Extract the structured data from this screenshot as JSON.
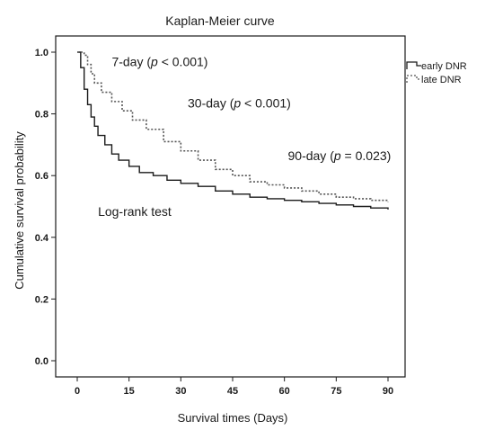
{
  "chart_data": {
    "type": "line",
    "title": "Kaplan-Meier curve",
    "xlabel": "Survival times (Days)",
    "ylabel": "Cumulative survival probability",
    "xlim": [
      0,
      90
    ],
    "ylim": [
      0,
      1.0
    ],
    "xticks": [
      0,
      15,
      30,
      45,
      60,
      75,
      90
    ],
    "yticks": [
      0.0,
      0.2,
      0.4,
      0.6,
      0.8,
      1.0
    ],
    "yticklabels": [
      "0.0",
      "0.2",
      "0.4",
      "0.6",
      "0.8",
      "1.0"
    ],
    "grid": false,
    "legend_position": "right",
    "series": [
      {
        "name": "early DNR",
        "style": "solid",
        "color": "#1a1a1a",
        "x": [
          0,
          1,
          2,
          3,
          4,
          5,
          6,
          8,
          10,
          12,
          15,
          18,
          22,
          26,
          30,
          35,
          40,
          45,
          50,
          55,
          60,
          65,
          70,
          75,
          80,
          85,
          90
        ],
        "y": [
          1.0,
          0.95,
          0.88,
          0.83,
          0.79,
          0.76,
          0.73,
          0.7,
          0.67,
          0.65,
          0.63,
          0.61,
          0.6,
          0.585,
          0.575,
          0.565,
          0.55,
          0.54,
          0.53,
          0.525,
          0.52,
          0.515,
          0.51,
          0.505,
          0.5,
          0.495,
          0.49
        ]
      },
      {
        "name": "late DNR",
        "style": "dotted",
        "color": "#555555",
        "x": [
          0,
          2,
          3,
          4,
          5,
          7,
          10,
          13,
          16,
          20,
          25,
          30,
          35,
          40,
          45,
          50,
          55,
          60,
          65,
          70,
          75,
          80,
          85,
          90
        ],
        "y": [
          1.0,
          0.99,
          0.96,
          0.93,
          0.9,
          0.87,
          0.84,
          0.81,
          0.78,
          0.75,
          0.71,
          0.68,
          0.65,
          0.62,
          0.6,
          0.58,
          0.57,
          0.56,
          0.55,
          0.54,
          0.53,
          0.525,
          0.52,
          0.515
        ]
      }
    ],
    "annotations": [
      {
        "x": 10,
        "y": 0.955,
        "parts": [
          "7-day (",
          "p",
          " < 0.001)"
        ]
      },
      {
        "x": 32,
        "y": 0.82,
        "parts": [
          "30-day (",
          "p",
          " < 0.001)"
        ]
      },
      {
        "x": 61,
        "y": 0.65,
        "parts": [
          "90-day (",
          "p",
          " = 0.023)"
        ]
      },
      {
        "x": 6,
        "y": 0.47,
        "parts": [
          "Log-rank test"
        ]
      }
    ]
  }
}
